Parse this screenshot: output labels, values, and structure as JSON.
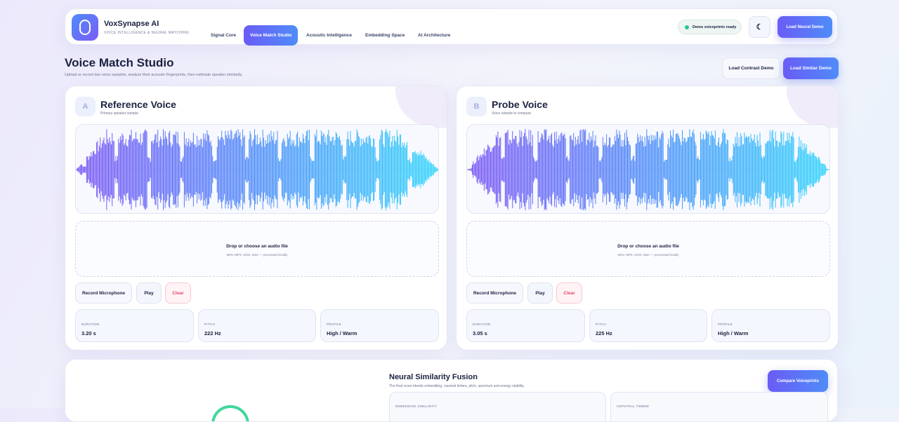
{
  "header": {
    "brand": "VoxSynapse AI",
    "tagline": "VOICE INTELLIGENCE & NEURAL MATCHING",
    "nav": [
      "Signal Core",
      "Voice Match Studio",
      "Acoustic Intelligence",
      "Embedding Space",
      "AI Architecture"
    ],
    "status": "Demo voiceprints ready",
    "action": "Load Neural Demo"
  },
  "page": {
    "title": "Voice Match Studio",
    "subtitle": "Upload or record two voice samples, analyze their acoustic fingerprints, then estimate speaker similarity.",
    "actions": [
      "Load Contrast Demo",
      "Load Similar Demo"
    ]
  },
  "voices": [
    {
      "badge": "A",
      "title": "Reference Voice",
      "subtitle": "Primary speaker sample",
      "drop_title": "Drop or choose an audio file",
      "drop_hint": "WAV, MP3, OGG, M4A — processed locally",
      "buttons": [
        "Record Microphone",
        "Play",
        "Clear"
      ],
      "stats": [
        {
          "label": "DURATION",
          "value": "3.20 s"
        },
        {
          "label": "PITCH",
          "value": "222 Hz"
        },
        {
          "label": "PROFILE",
          "value": "High / Warm"
        }
      ]
    },
    {
      "badge": "B",
      "title": "Probe Voice",
      "subtitle": "Voice sample to compare",
      "drop_title": "Drop or choose an audio file",
      "drop_hint": "WAV, MP3, OGG, M4A — processed locally",
      "buttons": [
        "Record Microphone",
        "Play",
        "Clear"
      ],
      "stats": [
        {
          "label": "DURATION",
          "value": "3.05 s"
        },
        {
          "label": "PITCH",
          "value": "225 Hz"
        },
        {
          "label": "PROFILE",
          "value": "High / Warm"
        }
      ]
    }
  ],
  "fusion": {
    "title": "Neural Similarity Fusion",
    "subtitle": "The final score blends embedding, cepstral timbre, pitch, spectrum and energy stability.",
    "action": "Compare Voiceprints",
    "metrics": [
      "EMBEDDING SIMILARITY",
      "CEPSTRAL TIMBRE"
    ]
  }
}
